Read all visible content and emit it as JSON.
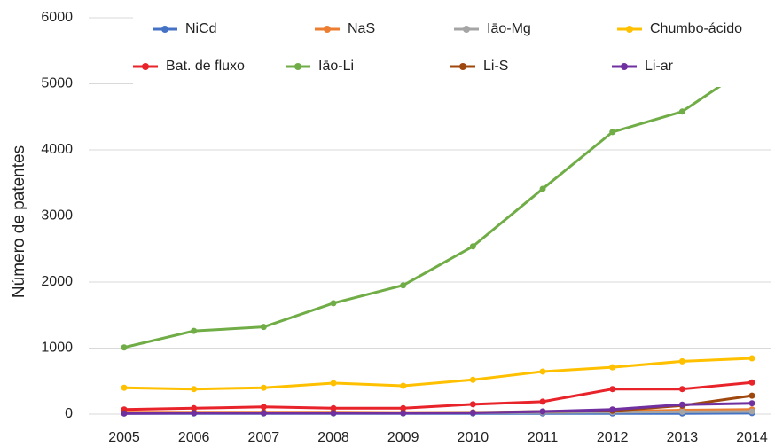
{
  "chart_data": {
    "type": "line",
    "y_label": "Número de patentes",
    "categories": [
      "2005",
      "2006",
      "2007",
      "2008",
      "2009",
      "2010",
      "2011",
      "2012",
      "2013",
      "2014"
    ],
    "ylim": [
      0,
      6000
    ],
    "yticks": [
      0,
      1000,
      2000,
      3000,
      4000,
      5000,
      6000
    ],
    "grid": true,
    "series": [
      {
        "name": "NiCd",
        "color": "#4472c4",
        "values": [
          10,
          10,
          10,
          10,
          10,
          10,
          10,
          10,
          10,
          15
        ]
      },
      {
        "name": "NaS",
        "color": "#ed7d31",
        "values": [
          30,
          30,
          30,
          30,
          25,
          25,
          30,
          40,
          60,
          70
        ]
      },
      {
        "name": "Iāo-Mg",
        "color": "#a5a5a5",
        "values": [
          20,
          20,
          20,
          20,
          20,
          20,
          25,
          30,
          35,
          40
        ]
      },
      {
        "name": "Chumbo-ácido",
        "color": "#ffc000",
        "values": [
          400,
          380,
          400,
          470,
          430,
          520,
          645,
          710,
          800,
          845
        ]
      },
      {
        "name": "Bat. de fluxo",
        "color": "#e8232a",
        "values": [
          70,
          90,
          110,
          90,
          90,
          150,
          190,
          380,
          380,
          480
        ]
      },
      {
        "name": "Iāo-Li",
        "color": "#70ad47",
        "values": [
          1010,
          1260,
          1320,
          1680,
          1950,
          2540,
          3410,
          4270,
          4580,
          5290
        ]
      },
      {
        "name": "Li-S",
        "color": "#9e480e",
        "values": [
          15,
          20,
          20,
          20,
          20,
          25,
          40,
          50,
          130,
          280
        ]
      },
      {
        "name": "Li-ar",
        "color": "#7030a0",
        "values": [
          10,
          15,
          15,
          15,
          15,
          20,
          40,
          70,
          145,
          165
        ]
      }
    ]
  }
}
